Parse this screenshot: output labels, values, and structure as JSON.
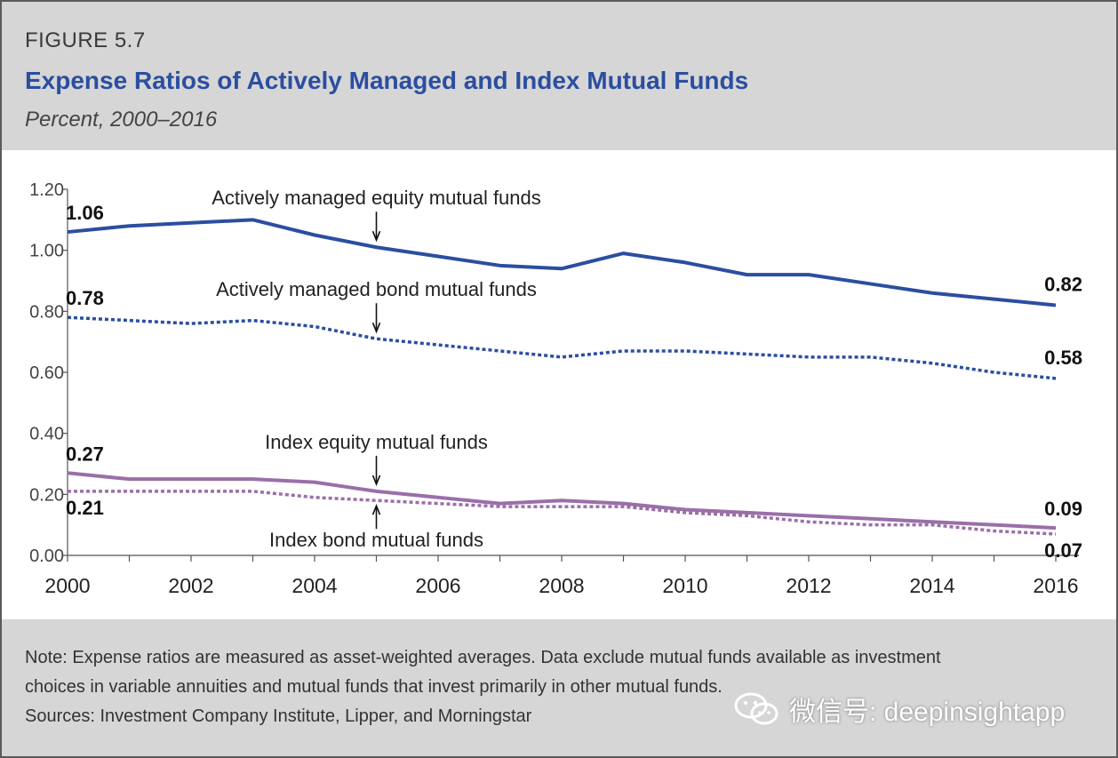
{
  "header": {
    "figure_label": "FIGURE 5.7",
    "title": "Expense Ratios of Actively Managed and Index Mutual Funds",
    "subtitle": "Percent, 2000–2016"
  },
  "footer": {
    "note_line_1": "Note: Expense ratios are measured as asset-weighted averages. Data exclude mutual funds available as investment",
    "note_line_2": "choices in variable annuities and mutual funds that invest primarily in other mutual funds.",
    "sources": "Sources: Investment Company Institute, Lipper, and Morningstar"
  },
  "watermark": {
    "text": "微信号: deepinsightapp",
    "icon": "wechat-icon"
  },
  "colors": {
    "accent": "#2b4ea0",
    "actively_managed": "#2b4ea0",
    "index": "#9a6fa8",
    "panel_bg": "#d6d6d6"
  },
  "chart_data": {
    "type": "line",
    "title": "Expense Ratios of Actively Managed and Index Mutual Funds",
    "subtitle": "Percent, 2000–2016",
    "xlabel": "",
    "ylabel": "",
    "x": [
      2000,
      2001,
      2002,
      2003,
      2004,
      2005,
      2006,
      2007,
      2008,
      2009,
      2010,
      2011,
      2012,
      2013,
      2014,
      2015,
      2016
    ],
    "xticks": [
      "2000",
      "2002",
      "2004",
      "2006",
      "2008",
      "2010",
      "2012",
      "2014",
      "2016"
    ],
    "yticks": [
      "0.00",
      "0.20",
      "0.40",
      "0.60",
      "0.80",
      "1.00",
      "1.20"
    ],
    "ylim": [
      0,
      1.2
    ],
    "xlim": [
      2000,
      2016
    ],
    "grid": false,
    "legend": "none (lines labeled directly with arrows)",
    "series": [
      {
        "name": "Actively managed equity mutual funds",
        "style": "solid",
        "color": "#2b4ea0",
        "values": [
          1.06,
          1.08,
          1.09,
          1.1,
          1.05,
          1.01,
          0.98,
          0.95,
          0.94,
          0.99,
          0.96,
          0.92,
          0.92,
          0.89,
          0.86,
          0.84,
          0.82
        ],
        "start_label": "1.06",
        "end_label": "0.82"
      },
      {
        "name": "Actively managed bond mutual funds",
        "style": "dotted",
        "color": "#2b4ea0",
        "values": [
          0.78,
          0.77,
          0.76,
          0.77,
          0.75,
          0.71,
          0.69,
          0.67,
          0.65,
          0.67,
          0.67,
          0.66,
          0.65,
          0.65,
          0.63,
          0.6,
          0.58
        ],
        "start_label": "0.78",
        "end_label": "0.58"
      },
      {
        "name": "Index equity mutual funds",
        "style": "solid",
        "color": "#9a6fa8",
        "values": [
          0.27,
          0.25,
          0.25,
          0.25,
          0.24,
          0.21,
          0.19,
          0.17,
          0.18,
          0.17,
          0.15,
          0.14,
          0.13,
          0.12,
          0.11,
          0.1,
          0.09
        ],
        "start_label": "0.27",
        "end_label": "0.09"
      },
      {
        "name": "Index bond mutual funds",
        "style": "dotted",
        "color": "#9a6fa8",
        "values": [
          0.21,
          0.21,
          0.21,
          0.21,
          0.19,
          0.18,
          0.17,
          0.16,
          0.16,
          0.16,
          0.14,
          0.13,
          0.11,
          0.1,
          0.1,
          0.08,
          0.07
        ],
        "start_label": "0.21",
        "end_label": "0.07"
      }
    ],
    "annotations": [
      {
        "text": "Actively managed equity mutual funds",
        "series": 0,
        "year": 2005,
        "arrow": "down"
      },
      {
        "text": "Actively managed bond mutual funds",
        "series": 1,
        "year": 2005,
        "arrow": "down"
      },
      {
        "text": "Index equity mutual funds",
        "series": 2,
        "year": 2005,
        "arrow": "down"
      },
      {
        "text": "Index bond mutual funds",
        "series": 3,
        "year": 2005,
        "arrow": "up"
      }
    ]
  }
}
